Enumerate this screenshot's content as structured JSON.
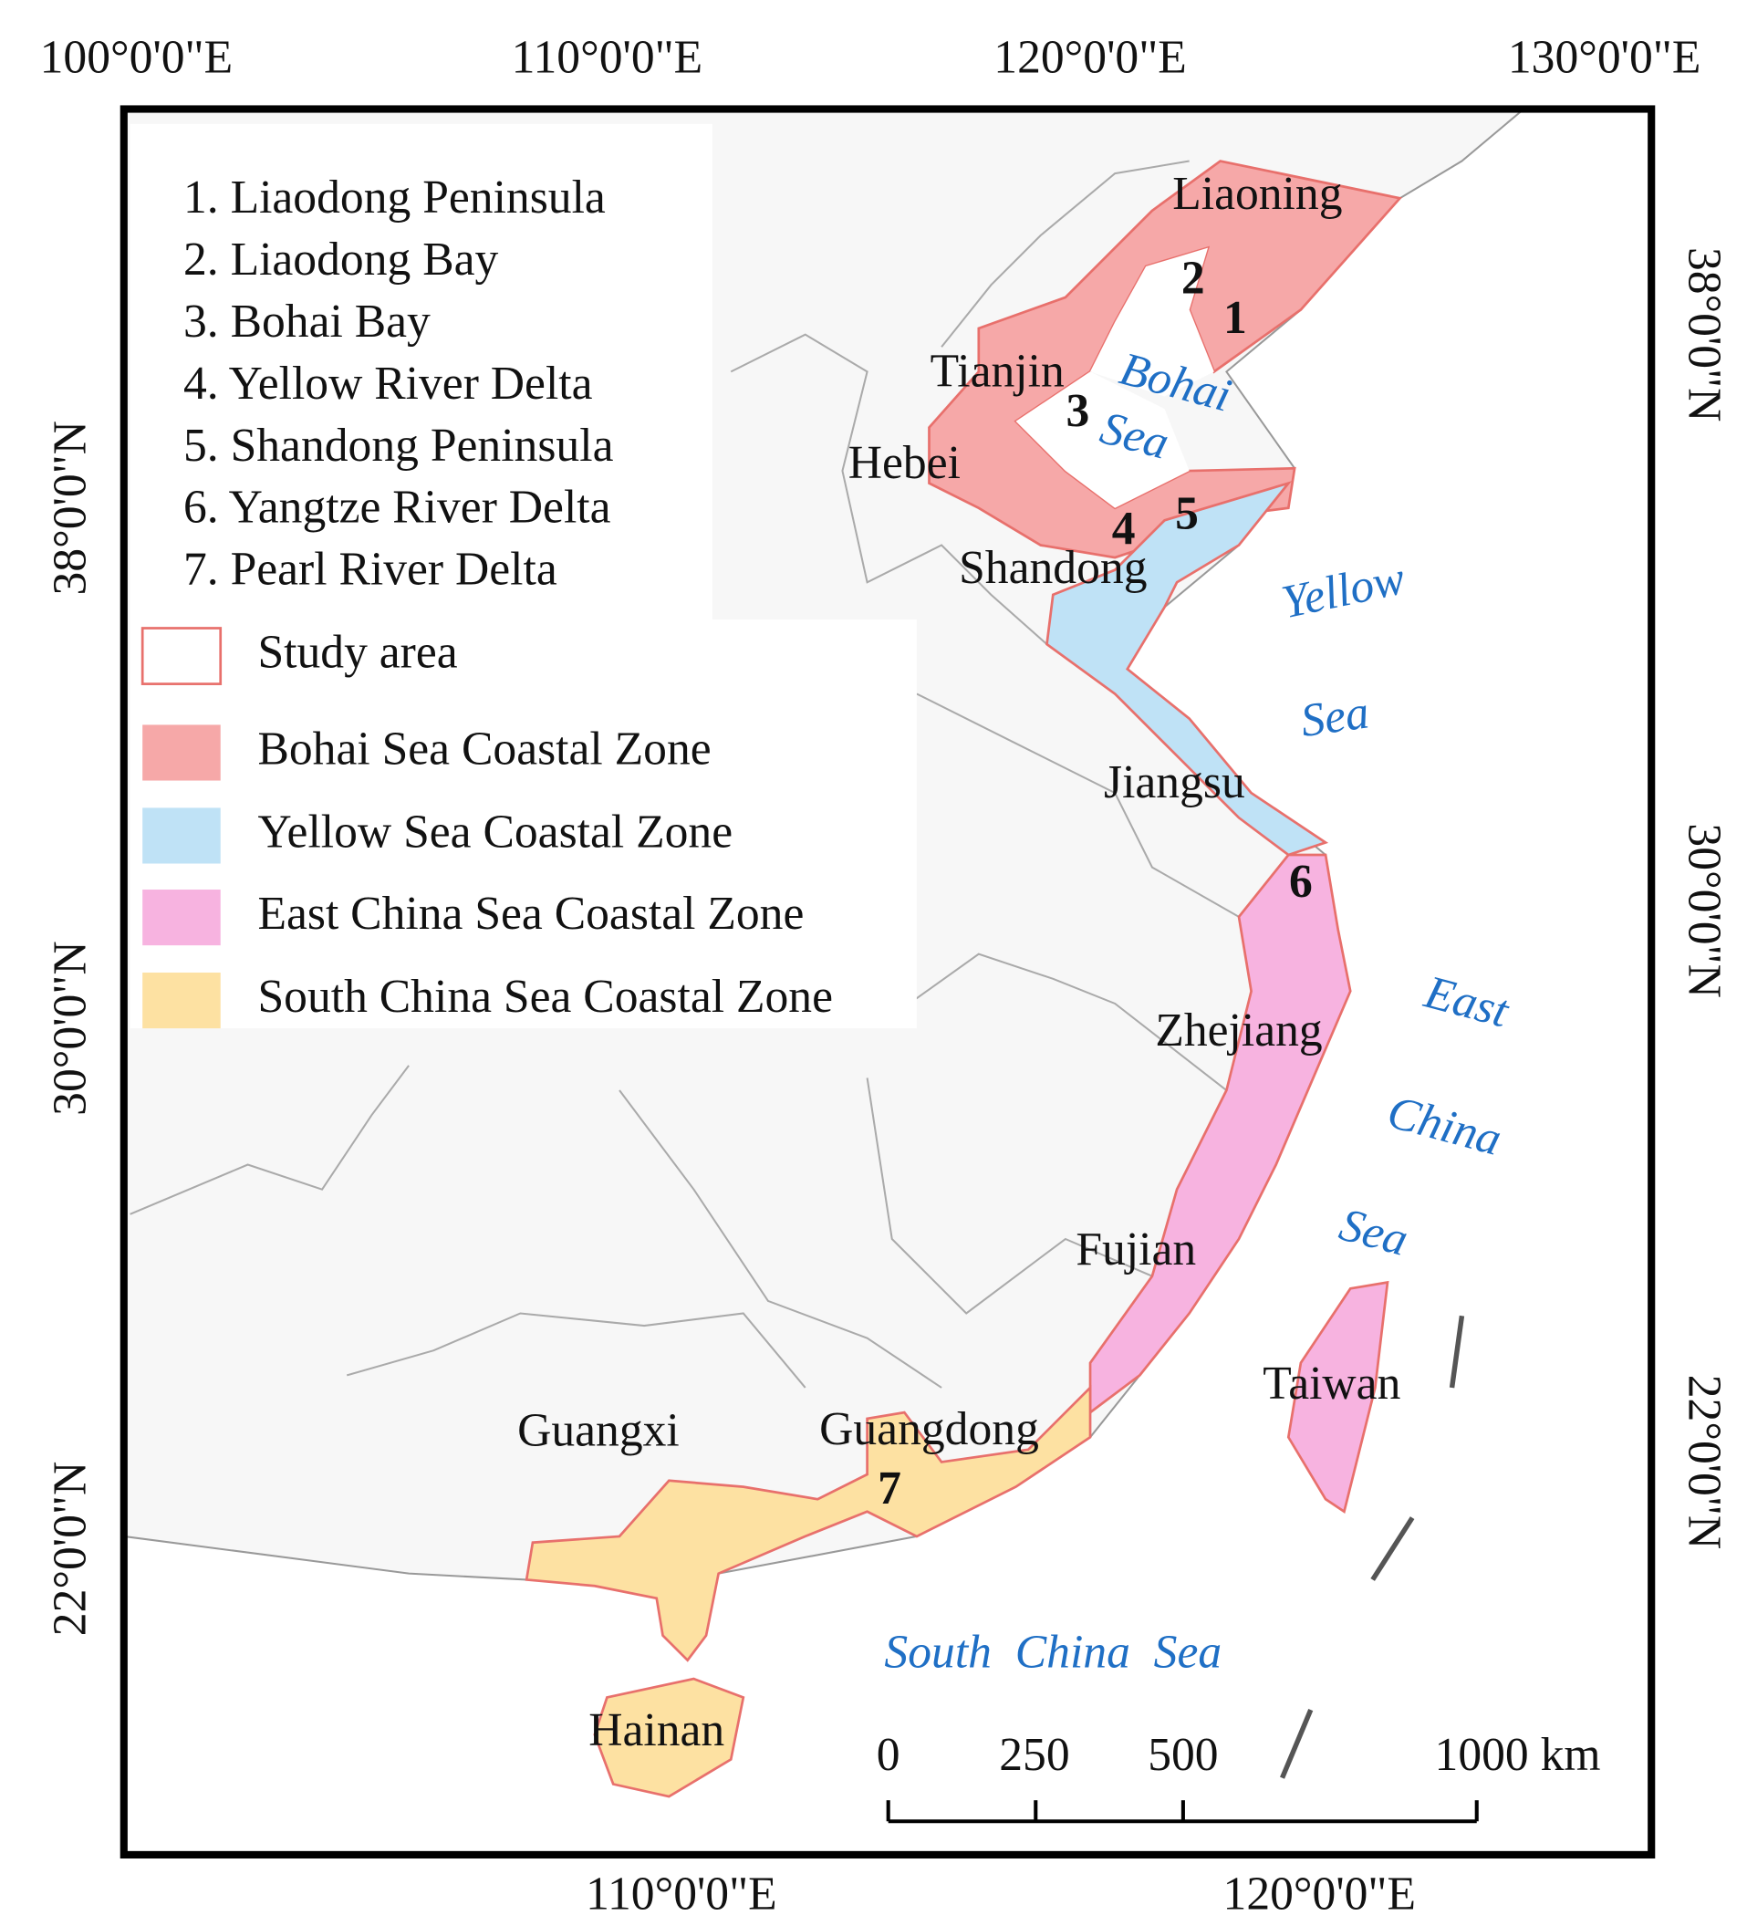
{
  "axes": {
    "top": [
      "100°0'0\"E",
      "110°0'0\"E",
      "120°0'0\"E",
      "130°0'0\"E"
    ],
    "bottom": [
      "110°0'0\"E",
      "120°0'0\"E"
    ],
    "left": [
      "38°0'0\"N",
      "30°0'0\"N",
      "22°0'0\"N"
    ],
    "right": [
      "38°0'0\"N",
      "30°0'0\"N",
      "22°0'0\"N"
    ]
  },
  "legend": {
    "regions": [
      "1. Liaodong Peninsula",
      "2. Liaodong Bay",
      "3. Bohai Bay",
      "4. Yellow River Delta",
      "5. Shandong Peninsula",
      "6. Yangtze River Delta",
      "7.  Pearl River Delta"
    ],
    "items": [
      {
        "label": "Study area",
        "color": "#ffffff"
      },
      {
        "label": "Bohai Sea Coastal Zone",
        "color": "#f6a8a8"
      },
      {
        "label": "Yellow Sea Coastal Zone",
        "color": "#bfe2f6"
      },
      {
        "label": "East China Sea Coastal Zone",
        "color": "#f7b3e0"
      },
      {
        "label": "South China Sea Coastal Zone",
        "color": "#fde1a2"
      }
    ]
  },
  "provinces": [
    "Liaoning",
    "Tianjin",
    "Hebei",
    "Shandong",
    "Jiangsu",
    "Zhejiang",
    "Fujian",
    "Taiwan",
    "Guangxi",
    "Guangdong",
    "Hainan"
  ],
  "region_numbers": [
    "1",
    "2",
    "3",
    "4",
    "5",
    "6",
    "7"
  ],
  "seas": [
    "Bohai",
    "Sea",
    "Yellow",
    "Sea",
    "East",
    "China",
    "Sea",
    "South  China  Sea"
  ],
  "scale_bar": [
    "0",
    "250",
    "500",
    "1000 km"
  ]
}
